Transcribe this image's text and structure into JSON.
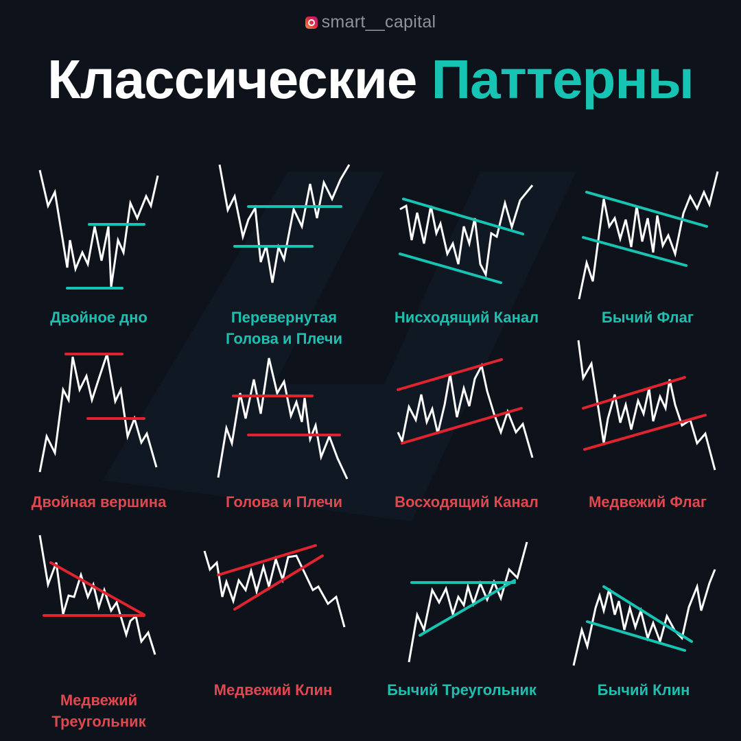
{
  "header": {
    "handle": "smart__capital",
    "title_main": "Классические",
    "title_accent": "Паттерны"
  },
  "colors": {
    "background": "#0e121b",
    "bullish": "#17c3b2",
    "bearish": "#e0242f",
    "price": "#ffffff"
  },
  "patterns": [
    {
      "label_lines": [
        "Двойное дно"
      ],
      "type": "bullish"
    },
    {
      "label_lines": [
        "Перевернутая",
        "Голова и Плечи"
      ],
      "type": "bullish"
    },
    {
      "label_lines": [
        "Нисходящий Канал"
      ],
      "type": "bullish"
    },
    {
      "label_lines": [
        "Бычий Флаг"
      ],
      "type": "bullish"
    },
    {
      "label_lines": [
        "Двойная вершина"
      ],
      "type": "bearish"
    },
    {
      "label_lines": [
        "Голова и Плечи"
      ],
      "type": "bearish"
    },
    {
      "label_lines": [
        "Восходящий Канал"
      ],
      "type": "bearish"
    },
    {
      "label_lines": [
        "Медвежий Флаг"
      ],
      "type": "bearish"
    },
    {
      "label_lines": [
        "Медвежий",
        "Треугольник"
      ],
      "type": "bearish"
    },
    {
      "label_lines": [
        "Медвежий Клин"
      ],
      "type": "bearish"
    },
    {
      "label_lines": [
        "Бычий Треугольник"
      ],
      "type": "bullish"
    },
    {
      "label_lines": [
        "Бычий Клин"
      ],
      "type": "bullish"
    }
  ]
}
